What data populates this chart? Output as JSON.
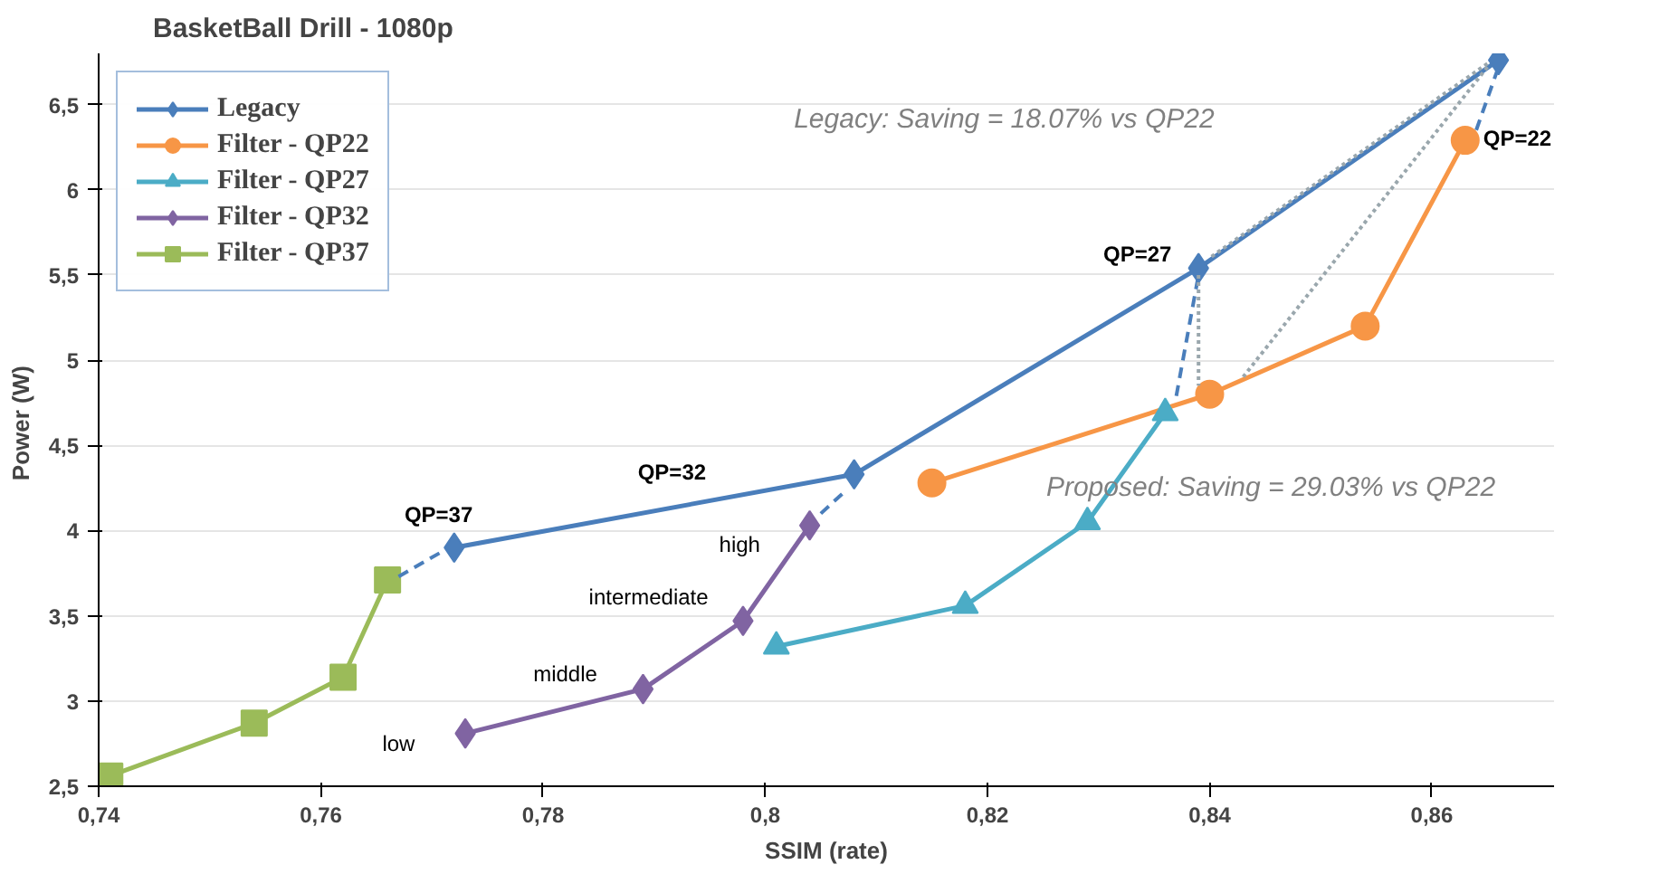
{
  "chart_data": {
    "type": "line",
    "title": "BasketBall Drill - 1080p",
    "xlabel": "SSIM (rate)",
    "ylabel": "Power  (W)",
    "xlim": [
      0.74,
      0.871
    ],
    "ylim": [
      2.5,
      6.8
    ],
    "xticks": [
      {
        "value": 0.74,
        "label": "0,74"
      },
      {
        "value": 0.76,
        "label": "0,76"
      },
      {
        "value": 0.78,
        "label": "0,78"
      },
      {
        "value": 0.8,
        "label": "0,8"
      },
      {
        "value": 0.82,
        "label": "0,82"
      },
      {
        "value": 0.84,
        "label": "0,84"
      },
      {
        "value": 0.86,
        "label": "0,86"
      }
    ],
    "yticks": [
      {
        "value": 2.5,
        "label": "2,5"
      },
      3,
      {
        "value": 3.5,
        "label": "3,5"
      },
      4,
      {
        "value": 4.5,
        "label": "4,5"
      },
      5,
      {
        "value": 5.5,
        "label": "5,5"
      },
      6,
      {
        "value": 6.5,
        "label": "6,5"
      }
    ],
    "grid": "y",
    "legend": "top left",
    "series": [
      {
        "name": "Legacy",
        "color": "#4a7ebb",
        "marker": "diamond",
        "x": [
          0.772,
          0.808,
          0.839,
          0.866
        ],
        "values": [
          3.9,
          4.33,
          5.54,
          6.76
        ]
      },
      {
        "name": "Filter - QP22",
        "color": "#f79646",
        "marker": "circle",
        "x": [
          0.815,
          0.84,
          0.854,
          0.863
        ],
        "values": [
          4.28,
          4.8,
          5.2,
          6.29
        ]
      },
      {
        "name": "Filter - QP27",
        "color": "#4bacc6",
        "marker": "triangle",
        "x": [
          0.801,
          0.818,
          0.829,
          0.836
        ],
        "values": [
          3.32,
          3.56,
          4.05,
          4.69
        ]
      },
      {
        "name": "Filter - QP32",
        "color": "#8064a2",
        "marker": "diamond",
        "x": [
          0.773,
          0.789,
          0.798,
          0.804
        ],
        "values": [
          2.81,
          3.07,
          3.47,
          4.03
        ]
      },
      {
        "name": "Filter - QP37",
        "color": "#9bbb59",
        "marker": "square",
        "x": [
          0.741,
          0.754,
          0.762,
          0.766
        ],
        "values": [
          2.56,
          2.87,
          3.14,
          3.71
        ]
      },
      {
        "color": "#4a7ebb",
        "marker": "none",
        "line_style": "dashed",
        "x": [
          0.767,
          0.771,
          null,
          0.805,
          0.807,
          null,
          0.837,
          0.839,
          null,
          0.864,
          0.866
        ],
        "values": [
          3.73,
          3.88,
          null,
          4.1,
          4.22,
          null,
          4.79,
          5.5,
          null,
          6.35,
          6.72
        ]
      },
      {
        "color": "#9aa7ad",
        "marker": "none",
        "line_style": "dotted",
        "x": [
          0.865,
          0.84,
          null,
          0.865,
          0.843,
          null,
          0.839,
          0.839
        ],
        "values": [
          6.74,
          5.6,
          null,
          6.72,
          4.9,
          null,
          5.5,
          4.85
        ]
      }
    ],
    "annotations": [
      "QP=37",
      "QP=32",
      "QP=27",
      "QP=22",
      "low",
      "middle",
      "intermediate",
      "high",
      "Legacy: Saving = 18.07% vs QP22",
      "Proposed: Saving = 29.03% vs QP22"
    ]
  }
}
